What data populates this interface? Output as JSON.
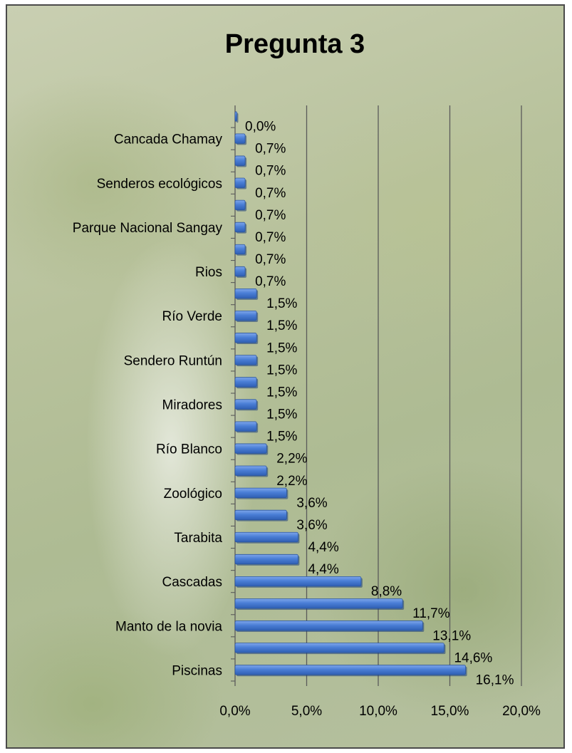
{
  "chart_data": {
    "type": "bar",
    "orientation": "horizontal",
    "title": "Pregunta 3",
    "xlim": [
      0,
      20
    ],
    "x_ticks": [
      "0,0%",
      "5,0%",
      "10,0%",
      "15,0%",
      "20,0%"
    ],
    "grid": true,
    "legend": "none",
    "bar_color": "#4a7ed6",
    "categories": [
      "Piscinas",
      "",
      "Manto de la novia",
      "",
      "Cascadas",
      "",
      "Tarabita",
      "",
      "Zoológico",
      "",
      "Río Blanco",
      "",
      "Miradores",
      "",
      "Sendero Runtún",
      "",
      "Río Verde",
      "",
      "Rios",
      "",
      "Parque Nacional Sangay",
      "",
      "Senderos ecológicos",
      "",
      "Cancada Chamay",
      ""
    ],
    "values": [
      16.1,
      14.6,
      13.1,
      11.7,
      8.8,
      4.4,
      4.4,
      3.6,
      3.6,
      2.2,
      2.2,
      1.5,
      1.5,
      1.5,
      1.5,
      1.5,
      1.5,
      1.5,
      0.7,
      0.7,
      0.7,
      0.7,
      0.7,
      0.7,
      0.7,
      0.0
    ],
    "value_labels": [
      "16,1%",
      "14,6%",
      "13,1%",
      "11,7%",
      "8,8%",
      "4,4%",
      "4,4%",
      "3,6%",
      "3,6%",
      "2,2%",
      "2,2%",
      "1,5%",
      "1,5%",
      "1,5%",
      "1,5%",
      "1,5%",
      "1,5%",
      "1,5%",
      "0,7%",
      "0,7%",
      "0,7%",
      "0,7%",
      "0,7%",
      "0,7%",
      "0,7%",
      "0,0%"
    ]
  }
}
